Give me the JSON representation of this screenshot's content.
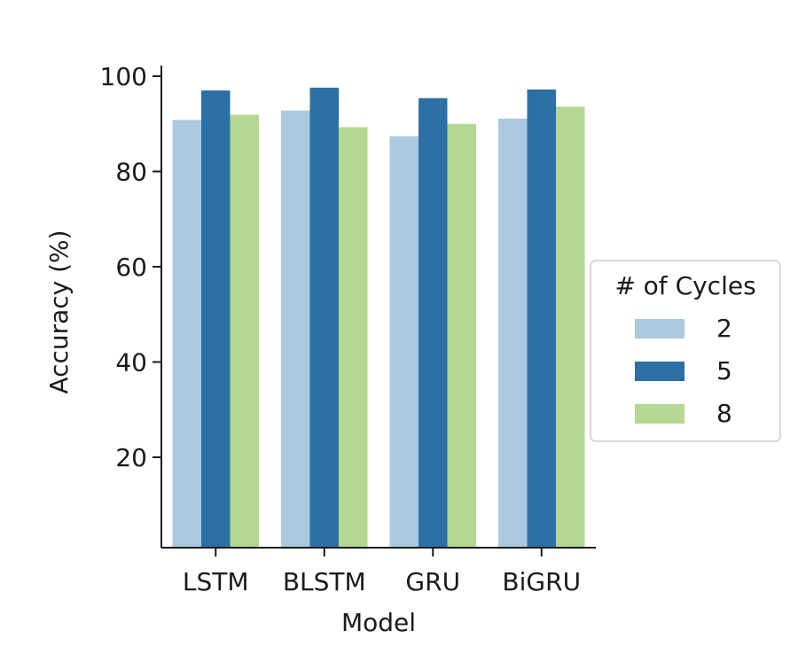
{
  "chart_data": {
    "type": "bar",
    "title": "",
    "xlabel": "Model",
    "ylabel": "Accuracy (%)",
    "categories": [
      "LSTM",
      "BLSTM",
      "GRU",
      "BiGRU"
    ],
    "ylim": [
      0,
      100
    ],
    "yticks": [
      20,
      40,
      60,
      80,
      100
    ],
    "grid": false,
    "legend": {
      "title": "# of Cycles",
      "placement": "center-right"
    },
    "series": [
      {
        "name": "2",
        "color": "#abcae0",
        "values": [
          90.8,
          92.8,
          87.4,
          91.1
        ]
      },
      {
        "name": "5",
        "color": "#2d70a6",
        "values": [
          97.0,
          97.6,
          95.4,
          97.2
        ]
      },
      {
        "name": "8",
        "color": "#b4d891",
        "values": [
          91.9,
          89.3,
          90.0,
          93.6
        ]
      }
    ]
  }
}
